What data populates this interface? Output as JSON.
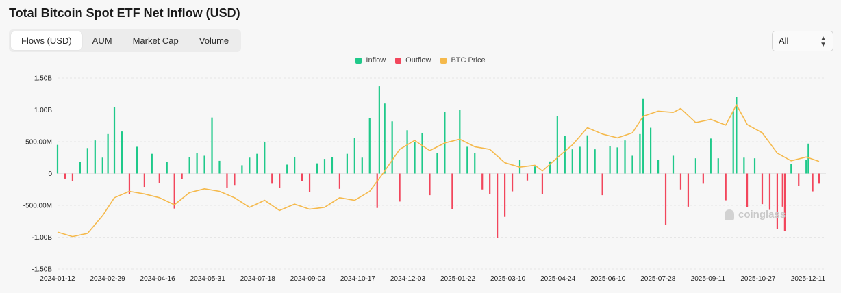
{
  "title": "Total Bitcoin Spot ETF Net Inflow (USD)",
  "tabs": [
    {
      "label": "Flows (USD)",
      "active": true
    },
    {
      "label": "AUM",
      "active": false
    },
    {
      "label": "Market Cap",
      "active": false
    },
    {
      "label": "Volume",
      "active": false
    }
  ],
  "range_select": {
    "value": "All",
    "icon": "chevron-up-down-icon"
  },
  "watermark": "coinglass",
  "colors": {
    "inflow": "#1fc98a",
    "outflow": "#f2465c",
    "btc_price": "#f5b94b",
    "grid": "#e6e6e6"
  },
  "chart_data": {
    "type": "bar",
    "title": "Total Bitcoin Spot ETF Net Inflow (USD)",
    "legend": [
      "Inflow",
      "Outflow",
      "BTC Price"
    ],
    "legend_position": "top-center",
    "grid": true,
    "ylim": [
      -1500000000,
      1500000000
    ],
    "y_tick_labels": [
      "1.50B",
      "1.00B",
      "500.00M",
      "0",
      "-500.00M",
      "-1.00B",
      "-1.50B"
    ],
    "x_tick_labels": [
      "2024-01-12",
      "2024-02-29",
      "2024-04-16",
      "2024-05-31",
      "2024-07-18",
      "2024-09-03",
      "2024-10-17",
      "2024-12-03",
      "2025-01-22",
      "2025-03-10",
      "2025-04-24",
      "2025-06-10",
      "2025-07-28",
      "2025-09-11",
      "2025-10-27",
      "2025-12-11"
    ],
    "x_range": [
      "2024-01-12",
      "2025-12-22"
    ],
    "flow_series": {
      "name": "Net Flow",
      "points": [
        [
          "2024-01-12",
          450000000
        ],
        [
          "2024-01-19",
          -80000000
        ],
        [
          "2024-01-26",
          -120000000
        ],
        [
          "2024-02-02",
          180000000
        ],
        [
          "2024-02-09",
          400000000
        ],
        [
          "2024-02-16",
          520000000
        ],
        [
          "2024-02-23",
          250000000
        ],
        [
          "2024-02-28",
          620000000
        ],
        [
          "2024-03-05",
          1040000000
        ],
        [
          "2024-03-12",
          660000000
        ],
        [
          "2024-03-19",
          -320000000
        ],
        [
          "2024-03-26",
          420000000
        ],
        [
          "2024-04-02",
          -210000000
        ],
        [
          "2024-04-09",
          310000000
        ],
        [
          "2024-04-16",
          -150000000
        ],
        [
          "2024-04-23",
          180000000
        ],
        [
          "2024-04-30",
          -550000000
        ],
        [
          "2024-05-07",
          -90000000
        ],
        [
          "2024-05-14",
          260000000
        ],
        [
          "2024-05-21",
          320000000
        ],
        [
          "2024-05-28",
          280000000
        ],
        [
          "2024-06-04",
          880000000
        ],
        [
          "2024-06-11",
          200000000
        ],
        [
          "2024-06-18",
          -220000000
        ],
        [
          "2024-06-25",
          -180000000
        ],
        [
          "2024-07-02",
          130000000
        ],
        [
          "2024-07-09",
          250000000
        ],
        [
          "2024-07-16",
          310000000
        ],
        [
          "2024-07-23",
          490000000
        ],
        [
          "2024-07-30",
          -160000000
        ],
        [
          "2024-08-06",
          -230000000
        ],
        [
          "2024-08-13",
          140000000
        ],
        [
          "2024-08-20",
          260000000
        ],
        [
          "2024-08-27",
          -120000000
        ],
        [
          "2024-09-03",
          -290000000
        ],
        [
          "2024-09-10",
          160000000
        ],
        [
          "2024-09-17",
          230000000
        ],
        [
          "2024-09-24",
          260000000
        ],
        [
          "2024-10-01",
          -240000000
        ],
        [
          "2024-10-08",
          310000000
        ],
        [
          "2024-10-15",
          560000000
        ],
        [
          "2024-10-22",
          250000000
        ],
        [
          "2024-10-29",
          870000000
        ],
        [
          "2024-11-05",
          -540000000
        ],
        [
          "2024-11-07",
          1370000000
        ],
        [
          "2024-11-12",
          1100000000
        ],
        [
          "2024-11-19",
          820000000
        ],
        [
          "2024-11-26",
          -440000000
        ],
        [
          "2024-12-03",
          680000000
        ],
        [
          "2024-12-10",
          500000000
        ],
        [
          "2024-12-17",
          640000000
        ],
        [
          "2024-12-24",
          -340000000
        ],
        [
          "2024-12-31",
          320000000
        ],
        [
          "2025-01-07",
          970000000
        ],
        [
          "2025-01-14",
          -560000000
        ],
        [
          "2025-01-21",
          1000000000
        ],
        [
          "2025-01-28",
          420000000
        ],
        [
          "2025-02-04",
          320000000
        ],
        [
          "2025-02-11",
          -250000000
        ],
        [
          "2025-02-18",
          -320000000
        ],
        [
          "2025-02-25",
          -1010000000
        ],
        [
          "2025-03-04",
          -680000000
        ],
        [
          "2025-03-11",
          -280000000
        ],
        [
          "2025-03-18",
          210000000
        ],
        [
          "2025-03-25",
          -110000000
        ],
        [
          "2025-04-01",
          110000000
        ],
        [
          "2025-04-08",
          -320000000
        ],
        [
          "2025-04-15",
          190000000
        ],
        [
          "2025-04-22",
          900000000
        ],
        [
          "2025-04-29",
          590000000
        ],
        [
          "2025-05-06",
          380000000
        ],
        [
          "2025-05-13",
          420000000
        ],
        [
          "2025-05-20",
          600000000
        ],
        [
          "2025-05-27",
          380000000
        ],
        [
          "2025-06-03",
          -340000000
        ],
        [
          "2025-06-10",
          430000000
        ],
        [
          "2025-06-17",
          410000000
        ],
        [
          "2025-06-24",
          520000000
        ],
        [
          "2025-07-01",
          280000000
        ],
        [
          "2025-07-08",
          620000000
        ],
        [
          "2025-07-11",
          1180000000
        ],
        [
          "2025-07-18",
          720000000
        ],
        [
          "2025-07-25",
          210000000
        ],
        [
          "2025-08-01",
          -810000000
        ],
        [
          "2025-08-08",
          280000000
        ],
        [
          "2025-08-15",
          -250000000
        ],
        [
          "2025-08-22",
          -520000000
        ],
        [
          "2025-08-29",
          240000000
        ],
        [
          "2025-09-05",
          -160000000
        ],
        [
          "2025-09-12",
          550000000
        ],
        [
          "2025-09-19",
          240000000
        ],
        [
          "2025-09-26",
          -420000000
        ],
        [
          "2025-10-03",
          980000000
        ],
        [
          "2025-10-06",
          1200000000
        ],
        [
          "2025-10-13",
          250000000
        ],
        [
          "2025-10-16",
          -530000000
        ],
        [
          "2025-10-23",
          240000000
        ],
        [
          "2025-10-30",
          -480000000
        ],
        [
          "2025-11-06",
          -570000000
        ],
        [
          "2025-11-13",
          -870000000
        ],
        [
          "2025-11-18",
          -520000000
        ],
        [
          "2025-11-20",
          -900000000
        ],
        [
          "2025-11-26",
          150000000
        ],
        [
          "2025-12-03",
          -190000000
        ],
        [
          "2025-12-10",
          220000000
        ],
        [
          "2025-12-12",
          470000000
        ],
        [
          "2025-12-16",
          -280000000
        ],
        [
          "2025-12-22",
          -160000000
        ]
      ]
    },
    "btc_price_series": {
      "name": "BTC Price",
      "points": [
        [
          "2024-01-12",
          -920000000
        ],
        [
          "2024-01-26",
          -990000000
        ],
        [
          "2024-02-09",
          -940000000
        ],
        [
          "2024-02-23",
          -660000000
        ],
        [
          "2024-03-05",
          -380000000
        ],
        [
          "2024-03-19",
          -280000000
        ],
        [
          "2024-04-02",
          -320000000
        ],
        [
          "2024-04-16",
          -380000000
        ],
        [
          "2024-04-30",
          -490000000
        ],
        [
          "2024-05-14",
          -300000000
        ],
        [
          "2024-05-28",
          -240000000
        ],
        [
          "2024-06-11",
          -280000000
        ],
        [
          "2024-06-25",
          -380000000
        ],
        [
          "2024-07-09",
          -530000000
        ],
        [
          "2024-07-23",
          -420000000
        ],
        [
          "2024-08-06",
          -580000000
        ],
        [
          "2024-08-20",
          -480000000
        ],
        [
          "2024-09-03",
          -560000000
        ],
        [
          "2024-09-17",
          -530000000
        ],
        [
          "2024-10-01",
          -380000000
        ],
        [
          "2024-10-15",
          -420000000
        ],
        [
          "2024-10-29",
          -280000000
        ],
        [
          "2024-11-12",
          40000000
        ],
        [
          "2024-11-26",
          380000000
        ],
        [
          "2024-12-10",
          520000000
        ],
        [
          "2024-12-24",
          360000000
        ],
        [
          "2025-01-07",
          480000000
        ],
        [
          "2025-01-21",
          540000000
        ],
        [
          "2025-02-04",
          420000000
        ],
        [
          "2025-02-18",
          380000000
        ],
        [
          "2025-03-04",
          170000000
        ],
        [
          "2025-03-18",
          100000000
        ],
        [
          "2025-04-01",
          130000000
        ],
        [
          "2025-04-08",
          40000000
        ],
        [
          "2025-04-22",
          250000000
        ],
        [
          "2025-05-06",
          450000000
        ],
        [
          "2025-05-20",
          720000000
        ],
        [
          "2025-06-03",
          620000000
        ],
        [
          "2025-06-17",
          560000000
        ],
        [
          "2025-07-01",
          640000000
        ],
        [
          "2025-07-11",
          900000000
        ],
        [
          "2025-07-25",
          980000000
        ],
        [
          "2025-08-08",
          960000000
        ],
        [
          "2025-08-15",
          1020000000
        ],
        [
          "2025-08-29",
          800000000
        ],
        [
          "2025-09-12",
          850000000
        ],
        [
          "2025-09-26",
          760000000
        ],
        [
          "2025-10-06",
          1080000000
        ],
        [
          "2025-10-16",
          770000000
        ],
        [
          "2025-10-30",
          640000000
        ],
        [
          "2025-11-13",
          320000000
        ],
        [
          "2025-11-26",
          200000000
        ],
        [
          "2025-12-10",
          260000000
        ],
        [
          "2025-12-22",
          190000000
        ]
      ]
    }
  }
}
